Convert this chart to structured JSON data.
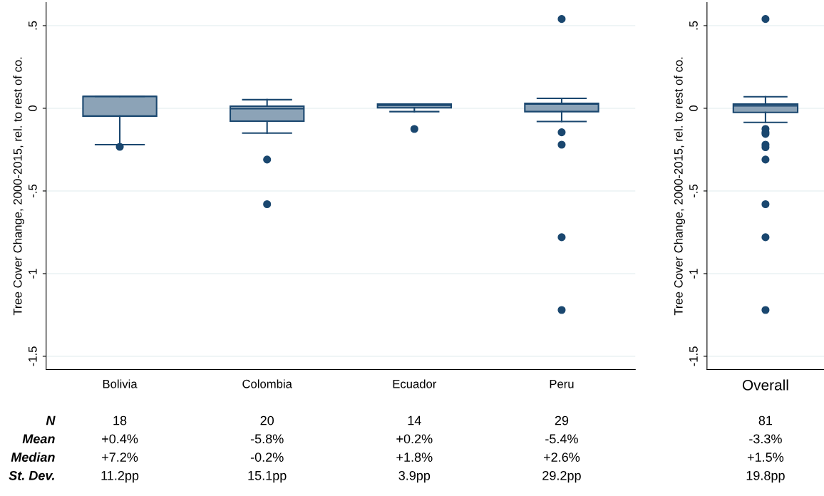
{
  "chart_data": [
    {
      "type": "box",
      "ylabel": "Tree Cover Change, 2000-2015, rel. to rest of co.",
      "categories": [
        "Bolivia",
        "Colombia",
        "Ecuador",
        "Peru"
      ],
      "color": "#1a476f",
      "boxes": [
        {
          "low": -0.22,
          "q1": -0.047,
          "median": 0.072,
          "q3": 0.072,
          "high": 0.072,
          "outliers": [
            -0.233
          ]
        },
        {
          "low": -0.15,
          "q1": -0.078,
          "median": -0.002,
          "q3": 0.013,
          "high": 0.052,
          "outliers": [
            -0.31,
            -0.58
          ]
        },
        {
          "low": -0.02,
          "q1": 0.003,
          "median": 0.018,
          "q3": 0.025,
          "high": 0.025,
          "outliers": [
            -0.125
          ]
        },
        {
          "low": -0.08,
          "q1": -0.02,
          "median": 0.026,
          "q3": 0.03,
          "high": 0.06,
          "outliers": [
            0.54,
            -0.145,
            -0.22,
            -0.78,
            -1.22
          ]
        }
      ],
      "ylim": [
        -1.58,
        0.64
      ],
      "yticks": [
        {
          "value": -1.5,
          "label": "-1.5"
        },
        {
          "value": -1,
          "label": "-1"
        },
        {
          "value": -0.5,
          "label": "-.5"
        },
        {
          "value": 0,
          "label": "0"
        },
        {
          "value": 0.5,
          "label": ".5"
        }
      ],
      "grid": "y",
      "annotations": [
        "N",
        "18",
        "20",
        "14",
        "29",
        "Mean",
        "+0.4%",
        "-5.8%",
        "+0.2%",
        "-5.4%",
        "Median",
        "+7.2%",
        "-0.2%",
        "+1.8%",
        "+2.6%",
        "St. Dev.",
        "11.2pp",
        "15.1pp",
        "3.9pp",
        "29.2pp"
      ]
    },
    {
      "type": "box",
      "ylabel": "Tree Cover Change, 2000-2015, rel. to rest of co.",
      "categories": [
        "Overall"
      ],
      "color": "#1a476f",
      "boxes": [
        {
          "low": -0.085,
          "q1": -0.025,
          "median": 0.015,
          "q3": 0.025,
          "high": 0.07,
          "outliers": [
            0.54,
            -0.125,
            -0.145,
            -0.155,
            -0.22,
            -0.235,
            -0.31,
            -0.58,
            -0.78,
            -1.22
          ]
        }
      ],
      "ylim": [
        -1.58,
        0.64
      ],
      "yticks": [
        {
          "value": -1.5,
          "label": "-1.5"
        },
        {
          "value": -1,
          "label": "-1"
        },
        {
          "value": -0.5,
          "label": "-.5"
        },
        {
          "value": 0,
          "label": "0"
        },
        {
          "value": 0.5,
          "label": ".5"
        }
      ],
      "grid": "y",
      "annotations": [
        "81",
        "-3.3%",
        "+1.5%",
        "19.8pp"
      ]
    }
  ]
}
